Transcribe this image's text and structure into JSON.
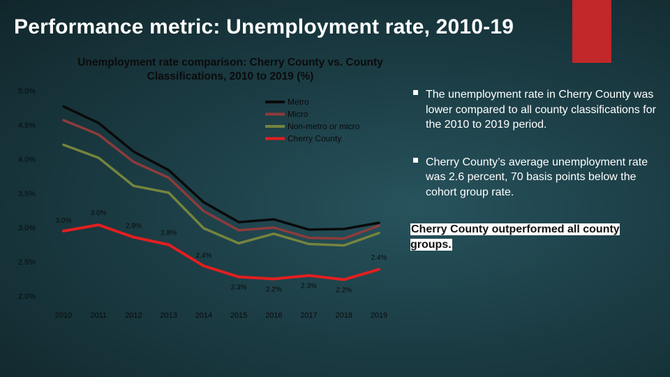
{
  "slide": {
    "title": "Performance metric: Unemployment rate, 2010-19",
    "accent_color": "#c0282a"
  },
  "chart_data": {
    "type": "line",
    "title": "Unemployment rate comparison: Cherry County vs. County Classifications, 2010 to 2019 (%)",
    "xlabel": "",
    "ylabel": "",
    "x": [
      "2010",
      "2011",
      "2012",
      "2013",
      "2014",
      "2015",
      "2016",
      "2017",
      "2018",
      "2019"
    ],
    "y_ticks": [
      "2.0%",
      "2.5%",
      "3.0%",
      "3.5%",
      "4.0%",
      "4.5%",
      "5.0%"
    ],
    "ylim": [
      2.0,
      5.0
    ],
    "grid": false,
    "legend_position": "top-right",
    "series": [
      {
        "name": "Metro",
        "color": "#0a0a0a",
        "values": [
          4.77,
          4.53,
          4.11,
          3.84,
          3.37,
          3.08,
          3.12,
          2.97,
          2.98,
          3.07
        ]
      },
      {
        "name": "Micro",
        "color": "#8e3b3b",
        "values": [
          4.57,
          4.36,
          3.96,
          3.73,
          3.24,
          2.96,
          3.0,
          2.85,
          2.84,
          3.03
        ]
      },
      {
        "name": "Non-metro or micro",
        "color": "#75843e",
        "values": [
          4.21,
          4.02,
          3.61,
          3.51,
          2.99,
          2.77,
          2.91,
          2.76,
          2.74,
          2.92
        ]
      },
      {
        "name": "Cherry County",
        "color": "#e21f1f",
        "values": [
          2.95,
          3.04,
          2.86,
          2.75,
          2.44,
          2.28,
          2.25,
          2.3,
          2.24,
          2.39
        ]
      }
    ],
    "data_labels": [
      "3.0%",
      "3.0%",
      "2.9%",
      "2.8%",
      "2.4%",
      "2.3%",
      "2.2%",
      "2.3%",
      "2.2%",
      "2.4%"
    ]
  },
  "bullets": [
    "The unemployment rate in Cherry County was lower compared to all county classifications for the 2010 to 2019 period.",
    "Cherry County’s average unemployment rate was 2.6 percent, 70 basis points below the cohort group rate."
  ],
  "callout": "Cherry County outperformed all county groups."
}
